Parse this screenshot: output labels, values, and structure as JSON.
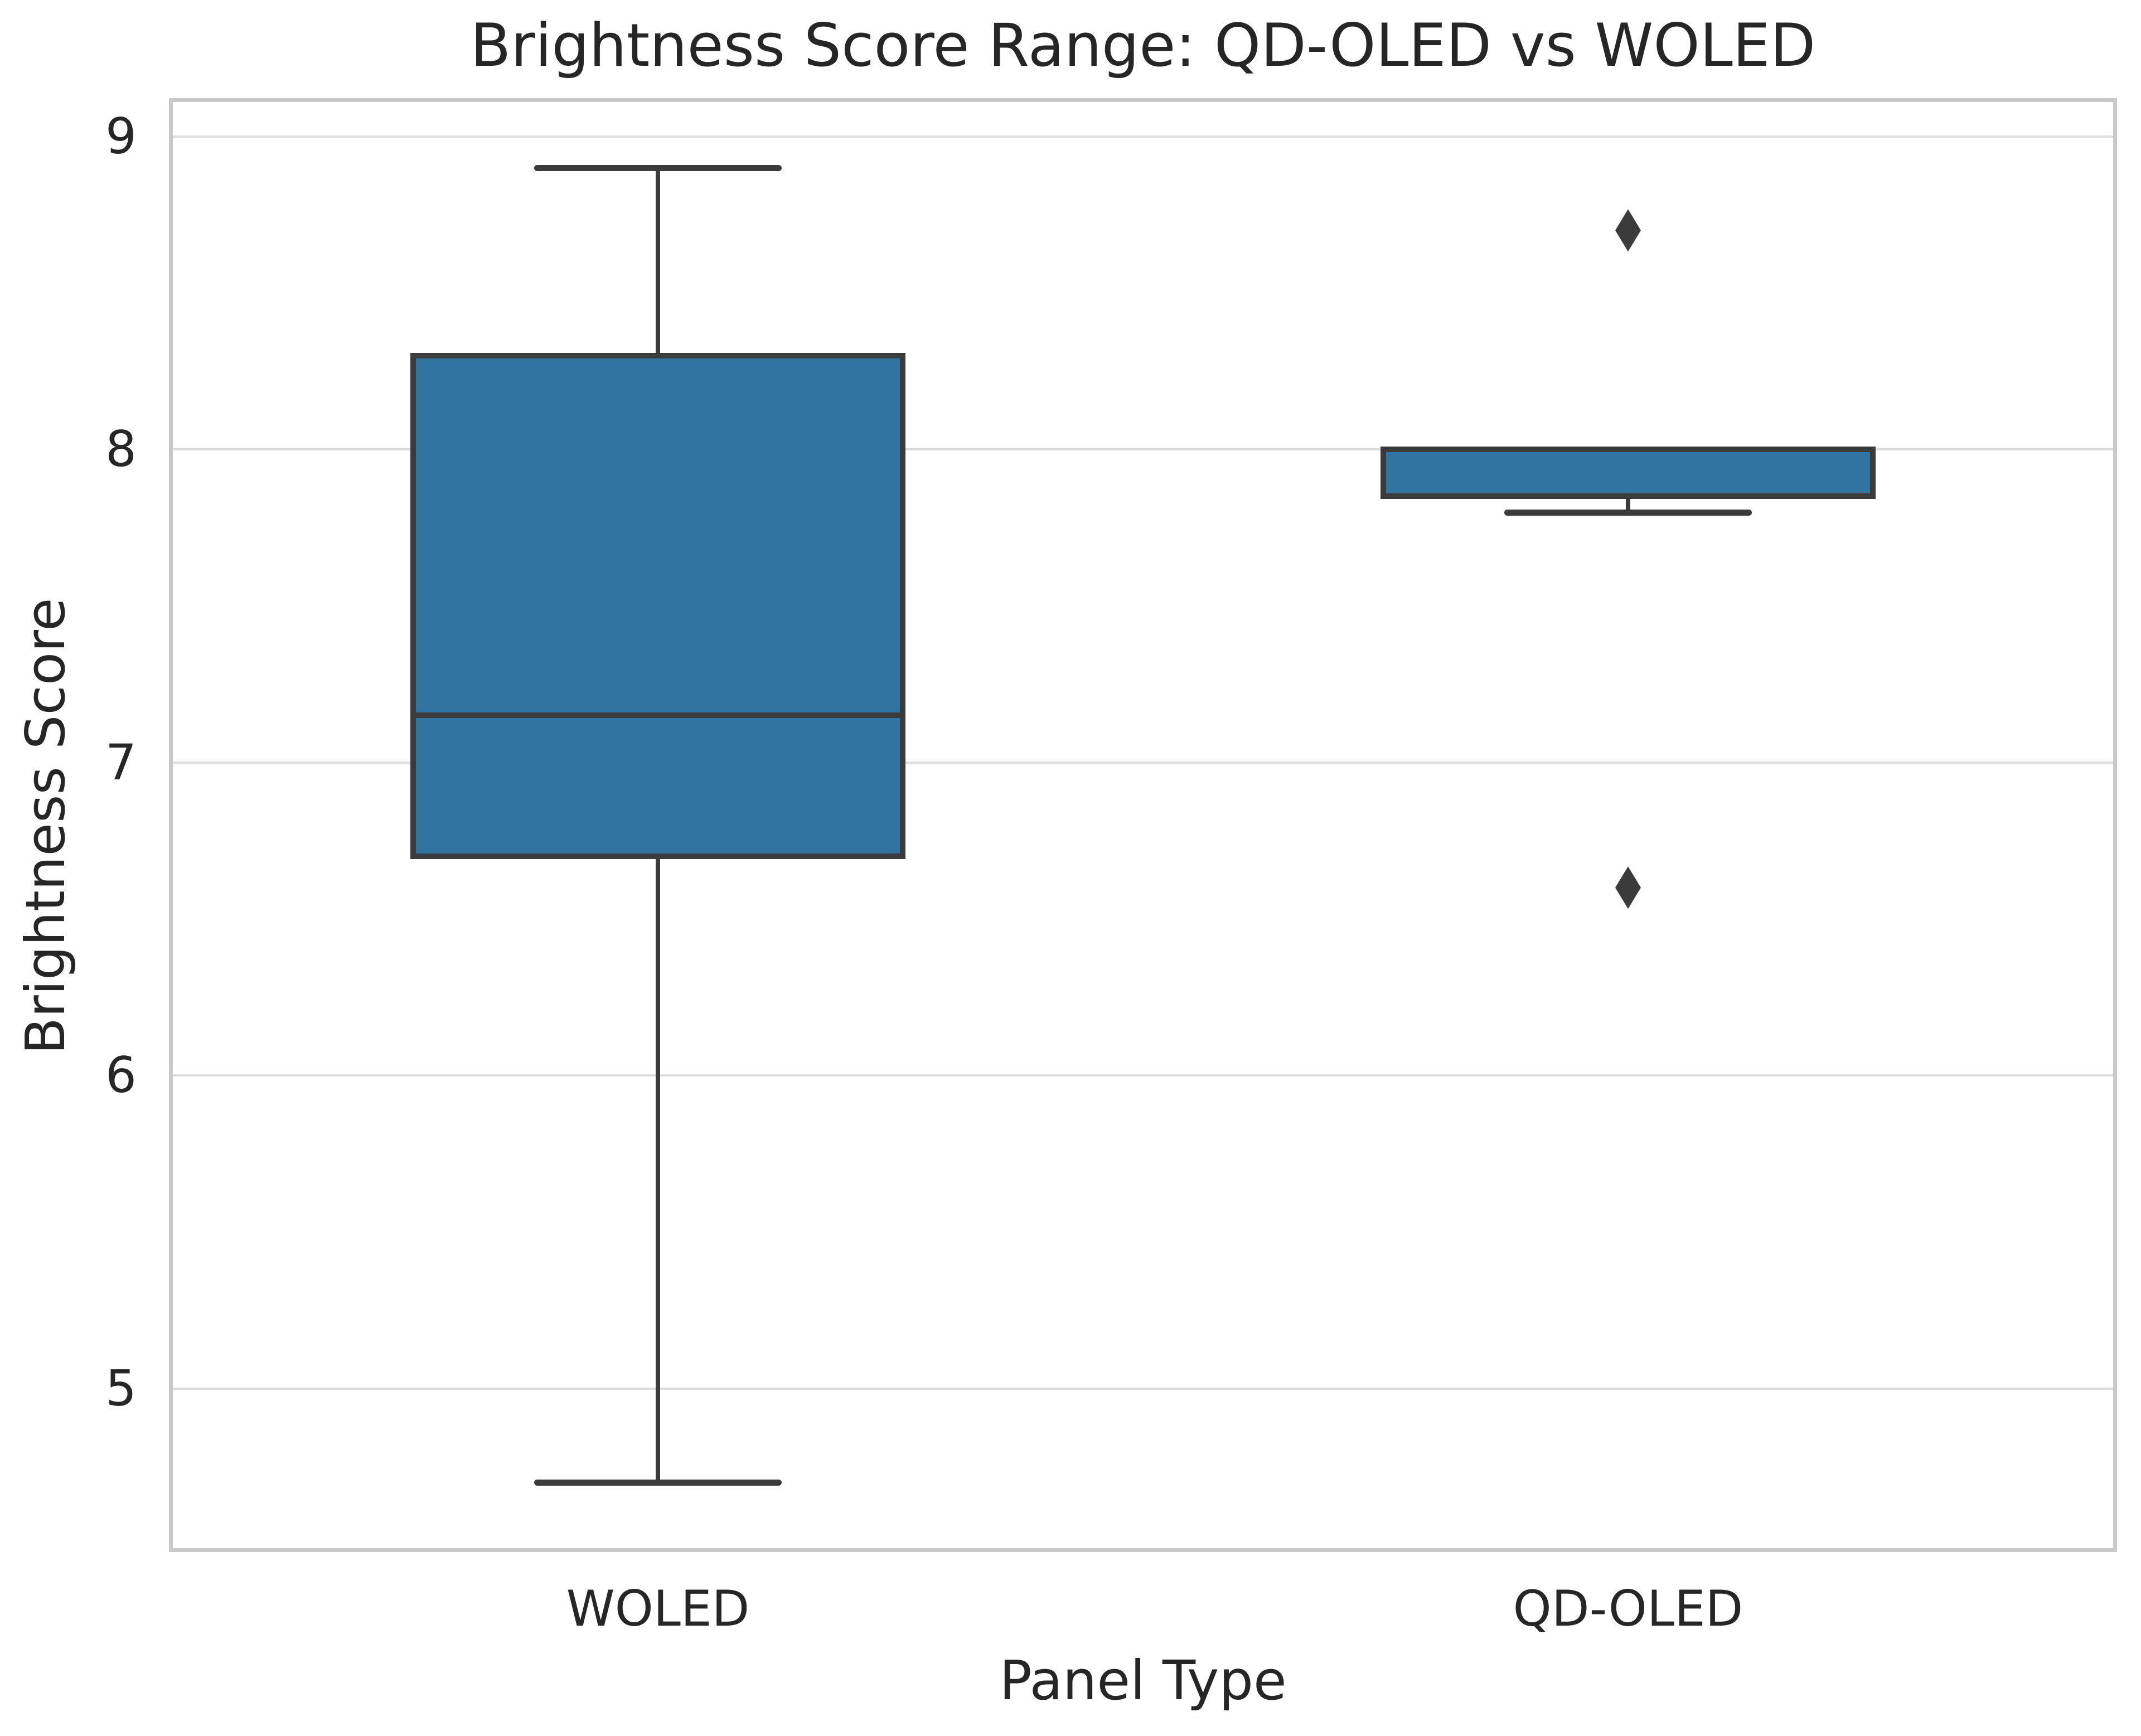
{
  "chart_data": {
    "type": "box",
    "title": "Brightness Score Range: QD-OLED vs WOLED",
    "xlabel": "Panel Type",
    "ylabel": "Brightness Score",
    "categories": [
      "WOLED",
      "QD-OLED"
    ],
    "y_ticks": [
      5,
      6,
      7,
      8,
      9
    ],
    "ylim": [
      4.49,
      9.11
    ],
    "grid": true,
    "legend": "none",
    "series": [
      {
        "category": "WOLED",
        "whisker_low": 4.7,
        "q1": 6.7,
        "median": 7.15,
        "q3": 8.3,
        "whisker_high": 8.9,
        "outliers": []
      },
      {
        "category": "QD-OLED",
        "whisker_low": 7.8,
        "q1": 7.85,
        "median": 7.85,
        "q3": 8.0,
        "whisker_high": 8.0,
        "outliers": [
          8.7,
          6.6
        ]
      }
    ],
    "colors": {
      "box_fill": "#3274A1",
      "line": "#3B3B3B",
      "grid": "#DCDCDC",
      "spine": "#C9C9C9",
      "text": "#262626",
      "background": "#FFFFFF"
    }
  }
}
